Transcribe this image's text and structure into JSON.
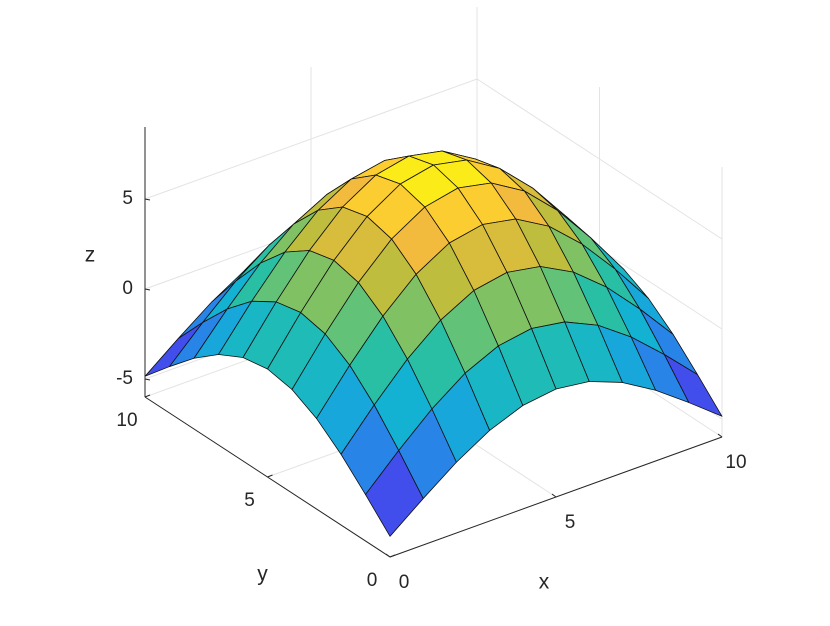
{
  "chart_data": {
    "type": "surface",
    "xlabel": "x",
    "ylabel": "y",
    "zlabel": "z",
    "x": [
      0,
      1,
      2,
      3,
      4,
      5,
      6,
      7,
      8,
      9,
      10
    ],
    "y": [
      0,
      1,
      2,
      3,
      4,
      5,
      6,
      7,
      8,
      9,
      10
    ],
    "z": [
      [
        -4.85,
        -3.42,
        -2.07,
        -0.97,
        -0.25,
        0,
        -0.25,
        -0.97,
        -2.07,
        -3.42,
        -4.85
      ],
      [
        -3.42,
        -1.64,
        0,
        1.32,
        2.17,
        2.47,
        2.17,
        1.32,
        0,
        -1.64,
        -3.42
      ],
      [
        -2.07,
        0,
        1.88,
        3.38,
        4.36,
        4.7,
        4.36,
        3.38,
        1.88,
        0,
        -2.07
      ],
      [
        -0.97,
        1.32,
        3.38,
        5.04,
        6.11,
        6.47,
        6.11,
        5.04,
        3.38,
        1.32,
        -0.97
      ],
      [
        -0.25,
        2.17,
        4.36,
        6.11,
        7.22,
        7.61,
        7.22,
        6.11,
        4.36,
        2.17,
        -0.25
      ],
      [
        0,
        2.47,
        4.7,
        6.47,
        7.61,
        8,
        7.61,
        6.47,
        4.7,
        2.47,
        0
      ],
      [
        -0.25,
        2.17,
        4.36,
        6.11,
        7.22,
        7.61,
        7.22,
        6.11,
        4.36,
        2.17,
        -0.25
      ],
      [
        -0.97,
        1.32,
        3.38,
        5.04,
        6.11,
        6.47,
        6.11,
        5.04,
        3.38,
        1.32,
        -0.97
      ],
      [
        -2.07,
        0,
        1.88,
        3.38,
        4.36,
        4.7,
        4.36,
        3.38,
        1.88,
        0,
        -2.07
      ],
      [
        -3.42,
        -1.64,
        0,
        1.32,
        2.17,
        2.47,
        2.17,
        1.32,
        0,
        -1.64,
        -3.42
      ],
      [
        -4.85,
        -3.42,
        -2.07,
        -0.97,
        -0.25,
        0,
        -0.25,
        -0.97,
        -2.07,
        -3.42,
        -4.85
      ]
    ],
    "xlim": [
      0,
      10
    ],
    "ylim": [
      0,
      10
    ],
    "zlim": [
      -6,
      9
    ],
    "xticks": [
      0,
      5,
      10
    ],
    "yticks": [
      0,
      5,
      10
    ],
    "zticks": [
      -5,
      0,
      5
    ],
    "grid": true,
    "colormap": [
      "#3e26a8",
      "#4150f0",
      "#2689e5",
      "#12b1d6",
      "#25bfa8",
      "#74c36a",
      "#c2bd3c",
      "#fcba3d",
      "#f9fb0e"
    ]
  }
}
